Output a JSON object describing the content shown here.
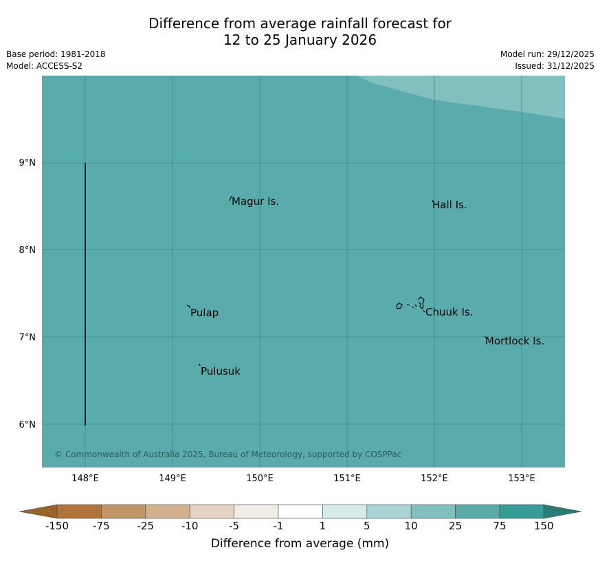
{
  "title": {
    "line1": "Difference from average rainfall forecast for",
    "line2": "12 to 25 January 2026"
  },
  "meta_left": {
    "base_period": "Base period: 1981-2018",
    "model": "Model: ACCESS-S2"
  },
  "meta_right": {
    "model_run": "Model run: 29/12/2025",
    "issued": "Issued: 31/12/2025"
  },
  "map": {
    "background_color": "#5aabab",
    "wetter_zone_color": "#82c0c0",
    "lon_ticks": [
      "148°E",
      "149°E",
      "150°E",
      "151°E",
      "152°E",
      "153°E"
    ],
    "lat_ticks": [
      "9°N",
      "8°N",
      "7°N",
      "6°N"
    ],
    "places": [
      {
        "name": "Magur Is."
      },
      {
        "name": "Hall Is."
      },
      {
        "name": "Pulap"
      },
      {
        "name": "Chuuk Is."
      },
      {
        "name": "Mortlock Is."
      },
      {
        "name": "Pulusuk"
      }
    ],
    "copyright": "© Commonwealth of Australia 2025, Bureau of Meteorology, supported by COSPPac"
  },
  "legend": {
    "title": "Difference from average (mm)",
    "tick_labels": [
      "-150",
      "-75",
      "-25",
      "-10",
      "-5",
      "-1",
      "1",
      "5",
      "10",
      "25",
      "75",
      "150"
    ],
    "under_color": "#9a6428",
    "over_color": "#2a7a76",
    "colors": [
      "#b0733a",
      "#c0956a",
      "#d2b191",
      "#e4d2c2",
      "#efede6",
      "#ffffff",
      "#d6ecea",
      "#aad4d3",
      "#81c0bf",
      "#5aabab",
      "#379b98"
    ]
  }
}
